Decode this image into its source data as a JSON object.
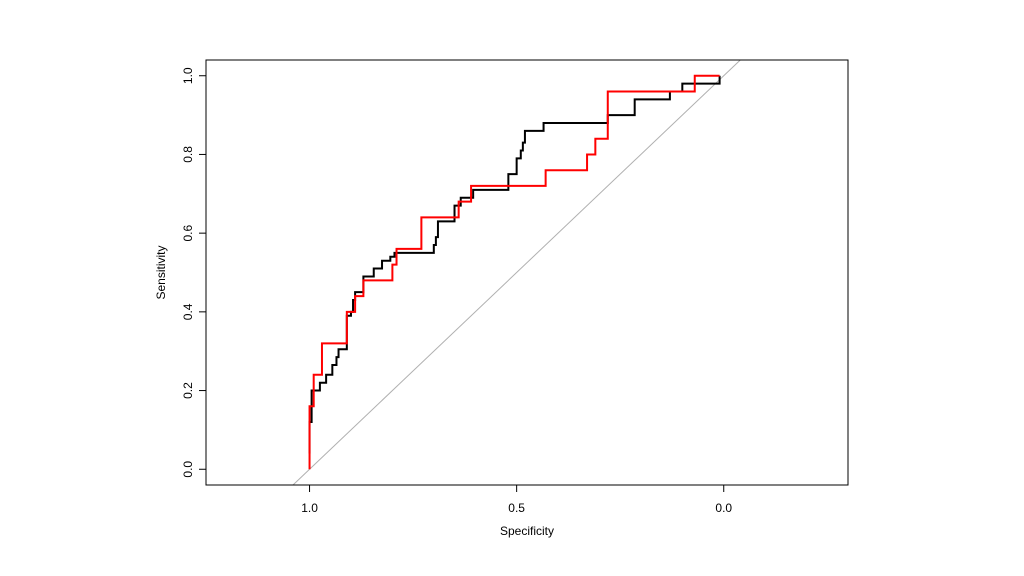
{
  "chart_data": {
    "type": "line",
    "title": "",
    "xlabel": "Specificity",
    "ylabel": "Sensitivity",
    "xlim": [
      1.25,
      -0.3
    ],
    "ylim": [
      -0.04,
      1.04
    ],
    "x_reversed": true,
    "x_ticks": [
      1.0,
      0.5,
      0.0
    ],
    "x_tick_labels": [
      "1.0",
      "0.5",
      "0.0"
    ],
    "y_ticks": [
      0.0,
      0.2,
      0.4,
      0.6,
      0.8,
      1.0
    ],
    "y_tick_labels": [
      "0.0",
      "0.2",
      "0.4",
      "0.6",
      "0.8",
      "1.0"
    ],
    "grid": false,
    "legend": null,
    "reference_line": {
      "name": "diagonal",
      "color": "#b0b0b0",
      "x": [
        1.04,
        -0.04
      ],
      "y": [
        -0.04,
        1.04
      ]
    },
    "series": [
      {
        "name": "black curve",
        "color": "#000000",
        "x": [
          1.0,
          1.0,
          0.995,
          0.995,
          0.975,
          0.975,
          0.96,
          0.96,
          0.945,
          0.945,
          0.935,
          0.935,
          0.93,
          0.93,
          0.91,
          0.91,
          0.9,
          0.9,
          0.895,
          0.895,
          0.89,
          0.89,
          0.885,
          0.885,
          0.88,
          0.88,
          0.87,
          0.87,
          0.845,
          0.845,
          0.825,
          0.825,
          0.805,
          0.805,
          0.795,
          0.795,
          0.785,
          0.785,
          0.7,
          0.7,
          0.695,
          0.695,
          0.69,
          0.69,
          0.68,
          0.68,
          0.65,
          0.65,
          0.635,
          0.635,
          0.605,
          0.605,
          0.595,
          0.595,
          0.585,
          0.585,
          0.52,
          0.52,
          0.5,
          0.5,
          0.49,
          0.49,
          0.485,
          0.485,
          0.48,
          0.48,
          0.435,
          0.435,
          0.28,
          0.28,
          0.215,
          0.215,
          0.13,
          0.13,
          0.1,
          0.1,
          0.06,
          0.06,
          0.01,
          0.01
        ],
        "y": [
          0.04,
          0.12,
          0.12,
          0.2,
          0.2,
          0.22,
          0.22,
          0.24,
          0.24,
          0.265,
          0.265,
          0.285,
          0.285,
          0.305,
          0.305,
          0.39,
          0.39,
          0.4,
          0.4,
          0.43,
          0.43,
          0.45,
          0.45,
          0.45,
          0.45,
          0.45,
          0.45,
          0.49,
          0.49,
          0.51,
          0.51,
          0.53,
          0.53,
          0.54,
          0.54,
          0.55,
          0.55,
          0.55,
          0.55,
          0.57,
          0.57,
          0.59,
          0.59,
          0.63,
          0.63,
          0.63,
          0.63,
          0.67,
          0.67,
          0.69,
          0.69,
          0.71,
          0.71,
          0.71,
          0.71,
          0.71,
          0.71,
          0.75,
          0.75,
          0.79,
          0.79,
          0.81,
          0.81,
          0.83,
          0.83,
          0.86,
          0.86,
          0.88,
          0.88,
          0.9,
          0.9,
          0.94,
          0.94,
          0.96,
          0.96,
          0.98,
          0.98,
          0.98,
          0.98,
          1.0
        ]
      },
      {
        "name": "red curve",
        "color": "#ff0000",
        "x": [
          1.0,
          1.0,
          0.99,
          0.99,
          0.98,
          0.98,
          0.97,
          0.97,
          0.91,
          0.91,
          0.89,
          0.89,
          0.87,
          0.87,
          0.84,
          0.84,
          0.8,
          0.8,
          0.79,
          0.79,
          0.77,
          0.77,
          0.73,
          0.73,
          0.65,
          0.65,
          0.64,
          0.64,
          0.61,
          0.61,
          0.6,
          0.6,
          0.43,
          0.43,
          0.33,
          0.33,
          0.32,
          0.32,
          0.31,
          0.31,
          0.29,
          0.29,
          0.28,
          0.28,
          0.07,
          0.07,
          0.06,
          0.06,
          0.01,
          0.01
        ],
        "y": [
          0.0,
          0.16,
          0.16,
          0.24,
          0.24,
          0.24,
          0.24,
          0.32,
          0.32,
          0.4,
          0.4,
          0.44,
          0.44,
          0.48,
          0.48,
          0.48,
          0.48,
          0.52,
          0.52,
          0.56,
          0.56,
          0.56,
          0.56,
          0.64,
          0.64,
          0.64,
          0.64,
          0.68,
          0.68,
          0.72,
          0.72,
          0.72,
          0.72,
          0.76,
          0.76,
          0.8,
          0.8,
          0.8,
          0.8,
          0.84,
          0.84,
          0.84,
          0.84,
          0.96,
          0.96,
          1.0,
          1.0,
          1.0,
          1.0,
          1.0
        ]
      }
    ]
  }
}
